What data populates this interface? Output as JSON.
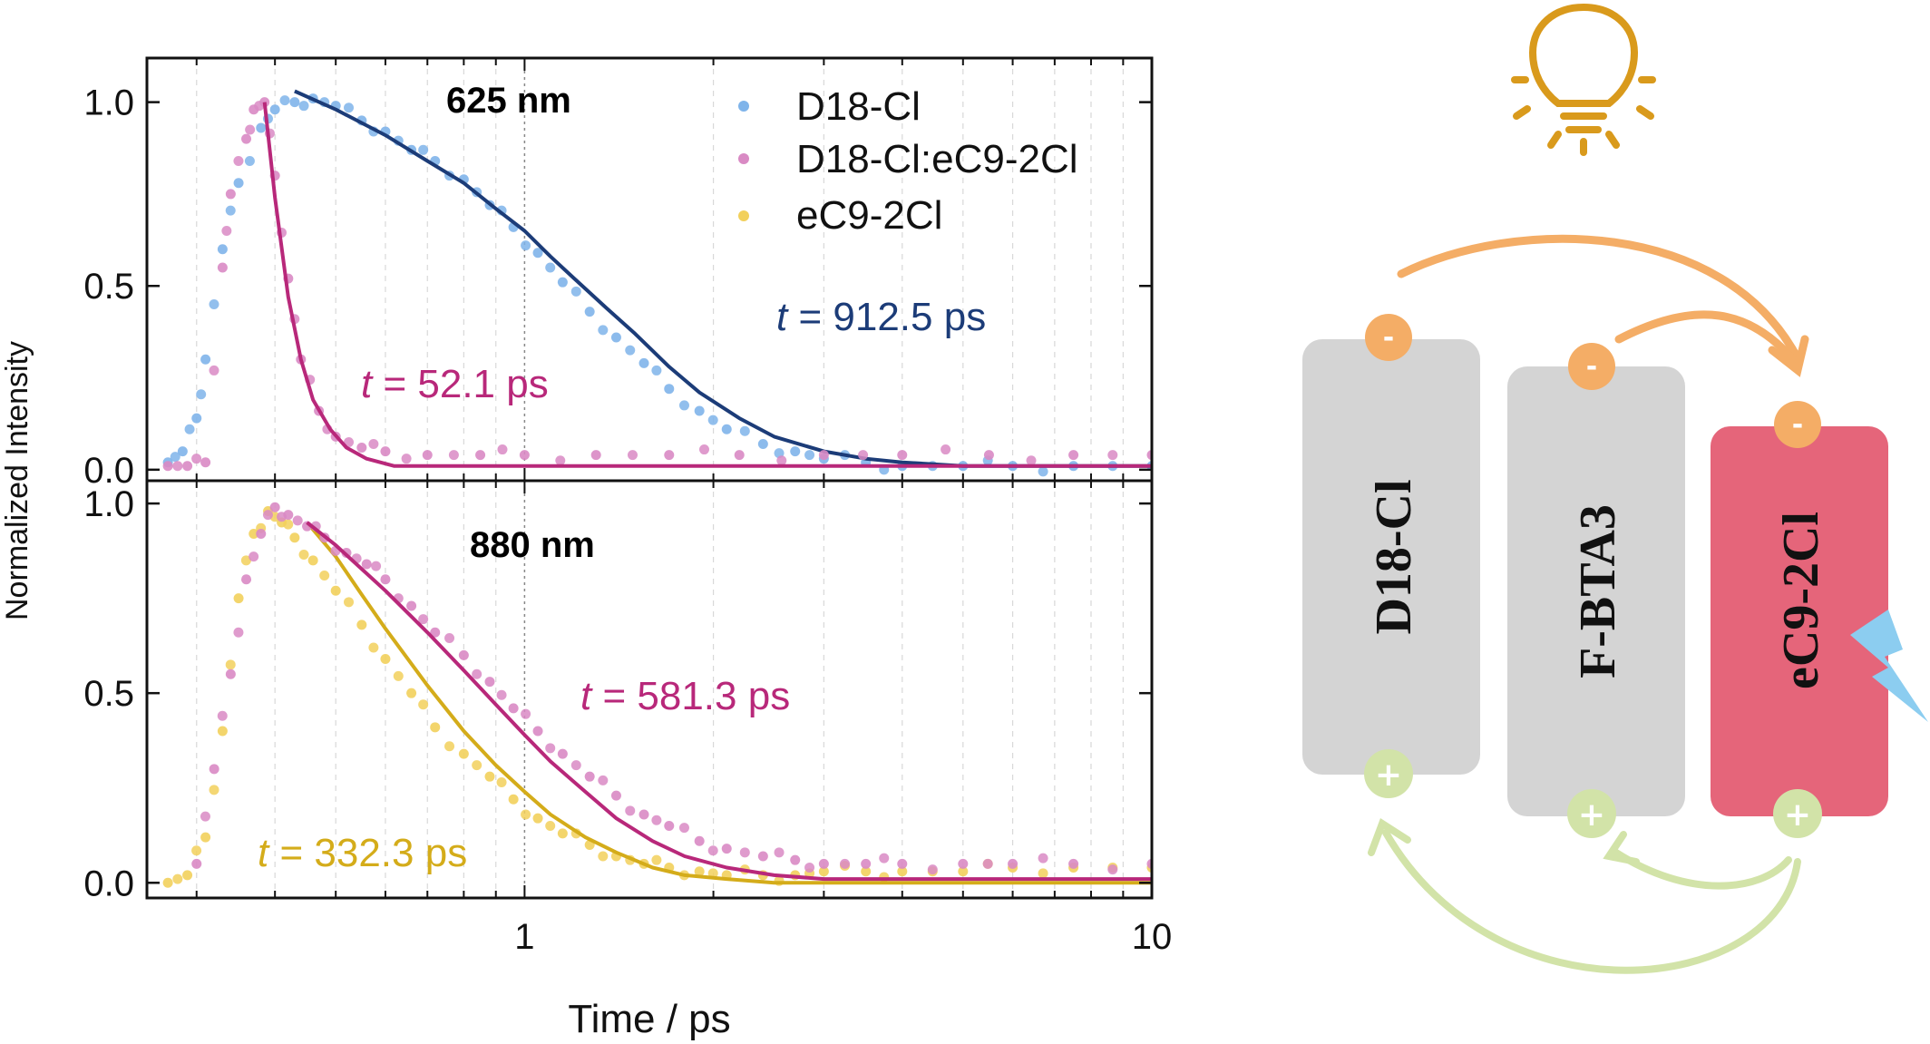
{
  "chart_data": {
    "type": "scatter",
    "xlabel": "Time / ps",
    "ylabel": "Normalized Intensity",
    "xscale": "log",
    "xlim": [
      0.25,
      10
    ],
    "xticks": [
      {
        "value": 1,
        "label": "1"
      },
      {
        "value": 10,
        "label": "10"
      }
    ],
    "panels": [
      {
        "title": "625 nm",
        "ylim": [
          -0.03,
          1.12
        ],
        "yticks": [
          {
            "value": 0.0,
            "label": "0.0"
          },
          {
            "value": 0.5,
            "label": "0.5"
          },
          {
            "value": 1.0,
            "label": "1.0"
          }
        ],
        "legend_position": "top-right",
        "series": [
          {
            "name": "D18-Cl",
            "color": "#7fb4ea",
            "fit_color": "#1c3c78",
            "tau_label": "t = 912.5 ps",
            "tau_value": "912.5",
            "x": [
              0.27,
              0.285,
              0.3,
              0.31,
              0.33,
              0.35,
              0.38,
              0.4,
              0.43,
              0.46,
              0.5,
              0.55,
              0.6,
              0.66,
              0.72,
              0.8,
              0.88,
              0.96,
              1.05,
              1.15,
              1.27,
              1.4,
              1.55,
              1.7,
              1.9,
              2.1,
              2.4,
              2.7,
              3.0,
              3.5,
              4.0,
              5.0,
              6.0,
              7.5,
              10.0
            ],
            "y": [
              0.02,
              0.05,
              0.14,
              0.3,
              0.6,
              0.78,
              0.93,
              0.98,
              1.0,
              1.01,
              0.99,
              0.95,
              0.92,
              0.87,
              0.84,
              0.79,
              0.72,
              0.66,
              0.59,
              0.51,
              0.43,
              0.36,
              0.29,
              0.22,
              0.16,
              0.11,
              0.07,
              0.05,
              0.03,
              0.02,
              0.01,
              0.01,
              0.01,
              0.01,
              0.01
            ],
            "fit_x": [
              0.43,
              0.5,
              0.6,
              0.7,
              0.8,
              0.9,
              1.0,
              1.1,
              1.2,
              1.35,
              1.5,
              1.7,
              1.9,
              2.2,
              2.5,
              3.0,
              3.5,
              4.0,
              5.0,
              7.0,
              10.0
            ],
            "fit_y": [
              1.03,
              0.98,
              0.91,
              0.84,
              0.78,
              0.71,
              0.65,
              0.58,
              0.52,
              0.44,
              0.37,
              0.28,
              0.21,
              0.14,
              0.09,
              0.05,
              0.03,
              0.02,
              0.01,
              0.01,
              0.01
            ]
          },
          {
            "name": "D18-Cl:eC9-2Cl",
            "color": "#d98ac4",
            "fit_color": "#b8287a",
            "tau_label": "t = 52.1 ps",
            "tau_value": "52.1",
            "x": [
              0.27,
              0.29,
              0.31,
              0.33,
              0.34,
              0.36,
              0.37,
              0.385,
              0.4,
              0.42,
              0.44,
              0.47,
              0.5,
              0.55,
              0.6,
              0.7,
              0.85,
              1.0,
              1.3,
              1.7,
              2.2,
              3.0,
              4.0,
              5.5,
              7.5,
              10.0
            ],
            "y": [
              0.01,
              0.01,
              0.02,
              0.55,
              0.75,
              0.9,
              0.98,
              1.0,
              0.8,
              0.52,
              0.3,
              0.16,
              0.09,
              0.06,
              0.05,
              0.04,
              0.04,
              0.04,
              0.04,
              0.04,
              0.04,
              0.04,
              0.04,
              0.04,
              0.04,
              0.04
            ],
            "fit_x": [
              0.385,
              0.4,
              0.42,
              0.44,
              0.46,
              0.49,
              0.52,
              0.56,
              0.62,
              0.7,
              0.85,
              1.2,
              2.0,
              4.0,
              10.0
            ],
            "fit_y": [
              1.0,
              0.74,
              0.47,
              0.3,
              0.19,
              0.11,
              0.06,
              0.03,
              0.01,
              0.01,
              0.01,
              0.01,
              0.01,
              0.01,
              0.01
            ]
          }
        ]
      },
      {
        "title": "880 nm",
        "ylim": [
          -0.04,
          1.06
        ],
        "yticks": [
          {
            "value": 0.0,
            "label": "0.0"
          },
          {
            "value": 0.5,
            "label": "0.5"
          },
          {
            "value": 1.0,
            "label": "1.0"
          }
        ],
        "series": [
          {
            "name": "eC9-2Cl",
            "color": "#f2d05c",
            "fit_color": "#d4ac1a",
            "tau_label": "t = 332.3 ps",
            "tau_value": "332.3",
            "x": [
              0.27,
              0.29,
              0.31,
              0.33,
              0.35,
              0.37,
              0.39,
              0.41,
              0.43,
              0.46,
              0.5,
              0.55,
              0.6,
              0.66,
              0.72,
              0.8,
              0.88,
              0.96,
              1.05,
              1.15,
              1.27,
              1.4,
              1.55,
              1.7,
              1.9,
              2.1,
              2.4,
              2.7,
              3.0,
              3.5,
              4.0,
              5.0,
              6.0,
              7.5,
              10.0
            ],
            "y": [
              0.0,
              0.02,
              0.12,
              0.4,
              0.75,
              0.92,
              0.98,
              0.95,
              0.91,
              0.85,
              0.77,
              0.68,
              0.59,
              0.5,
              0.41,
              0.34,
              0.28,
              0.22,
              0.17,
              0.13,
              0.1,
              0.07,
              0.05,
              0.04,
              0.03,
              0.02,
              0.02,
              0.02,
              0.03,
              0.03,
              0.03,
              0.03,
              0.04,
              0.04,
              0.04
            ],
            "fit_x": [
              0.45,
              0.5,
              0.55,
              0.6,
              0.7,
              0.8,
              0.9,
              1.0,
              1.1,
              1.25,
              1.4,
              1.6,
              1.8,
              2.1,
              2.5,
              3.0,
              4.0,
              10.0
            ],
            "fit_y": [
              0.95,
              0.86,
              0.76,
              0.67,
              0.52,
              0.4,
              0.31,
              0.24,
              0.18,
              0.12,
              0.08,
              0.04,
              0.02,
              0.01,
              0.0,
              0.0,
              0.0,
              0.0
            ]
          },
          {
            "name": "D18-Cl:eC9-2Cl",
            "color": "#d98ac4",
            "fit_color": "#b8287a",
            "tau_label": "t = 581.3 ps",
            "tau_value": "581.3",
            "x": [
              0.3,
              0.32,
              0.34,
              0.36,
              0.38,
              0.4,
              0.42,
              0.45,
              0.48,
              0.52,
              0.56,
              0.6,
              0.66,
              0.72,
              0.8,
              0.88,
              0.96,
              1.05,
              1.15,
              1.27,
              1.4,
              1.55,
              1.7,
              1.9,
              2.1,
              2.4,
              2.7,
              3.0,
              3.5,
              4.0,
              5.0,
              6.0,
              7.5,
              10.0
            ],
            "y": [
              0.05,
              0.3,
              0.55,
              0.8,
              0.92,
              0.99,
              0.97,
              0.94,
              0.91,
              0.87,
              0.84,
              0.8,
              0.73,
              0.66,
              0.6,
              0.53,
              0.46,
              0.4,
              0.34,
              0.28,
              0.23,
              0.18,
              0.15,
              0.11,
              0.09,
              0.07,
              0.06,
              0.05,
              0.05,
              0.05,
              0.05,
              0.05,
              0.05,
              0.05
            ],
            "fit_x": [
              0.45,
              0.5,
              0.6,
              0.7,
              0.8,
              0.9,
              1.0,
              1.1,
              1.25,
              1.4,
              1.6,
              1.8,
              2.1,
              2.5,
              3.0,
              3.5,
              4.0,
              5.0,
              7.0,
              10.0
            ],
            "fit_y": [
              0.95,
              0.89,
              0.77,
              0.66,
              0.56,
              0.47,
              0.39,
              0.32,
              0.24,
              0.17,
              0.11,
              0.07,
              0.04,
              0.02,
              0.01,
              0.01,
              0.01,
              0.01,
              0.01,
              0.01
            ]
          }
        ]
      }
    ]
  },
  "diagram": {
    "boxes": [
      {
        "label": "D18-Cl",
        "color": "#d4d4d4"
      },
      {
        "label": "F-BTA3",
        "color": "#d4d4d4"
      },
      {
        "label": "eC9-2Cl",
        "color": "#e5657a"
      }
    ],
    "electron_symbol": "-",
    "hole_symbol": "+",
    "electron_color": "#f4ad66",
    "hole_color": "#d2e3a8",
    "bulb_color": "#d99a1c",
    "lightning_color": "#8ccdf0",
    "icons": [
      "light-bulb-icon",
      "lightning-icon"
    ]
  }
}
